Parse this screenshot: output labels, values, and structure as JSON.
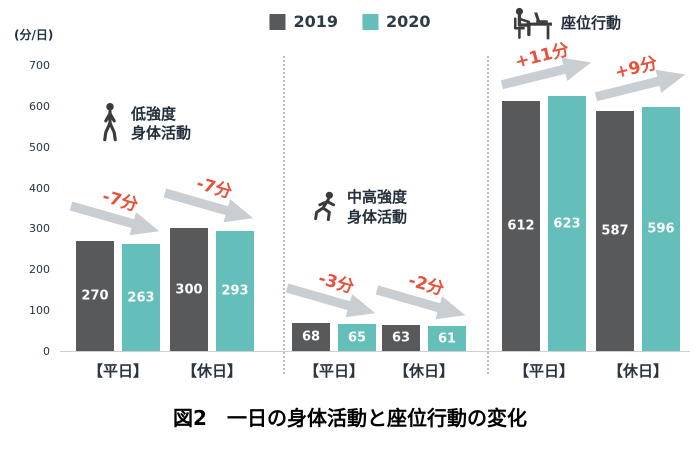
{
  "chart_data": {
    "type": "bar",
    "title": "図2　一日の身体活動と座位行動の変化",
    "ylabel": "(分/日)",
    "ylim": [
      0,
      700
    ],
    "y_ticks": [
      700,
      600,
      500,
      400,
      300,
      200,
      100,
      0
    ],
    "legend_position": "top-center",
    "grid": false,
    "series": [
      {
        "name": "2019",
        "color": "#58595b"
      },
      {
        "name": "2020",
        "color": "#64bfba"
      }
    ],
    "groups": [
      {
        "label_lines": [
          "低強度",
          "身体活動"
        ],
        "icon": "walking-person-icon",
        "pairs": [
          {
            "category": "【平日】",
            "values": [
              270,
              263
            ],
            "change_label": "-7分",
            "direction": "down"
          },
          {
            "category": "【休日】",
            "values": [
              300,
              293
            ],
            "change_label": "-7分",
            "direction": "down"
          }
        ]
      },
      {
        "label_lines": [
          "中高強度",
          "身体活動"
        ],
        "icon": "running-person-icon",
        "pairs": [
          {
            "category": "【平日】",
            "values": [
              68,
              65
            ],
            "change_label": "-3分",
            "direction": "down"
          },
          {
            "category": "【休日】",
            "values": [
              63,
              61
            ],
            "change_label": "-2分",
            "direction": "down"
          }
        ]
      },
      {
        "label_lines": [
          "座位行動"
        ],
        "icon": "sitting-person-icon",
        "pairs": [
          {
            "category": "【平日】",
            "values": [
              612,
              623
            ],
            "change_label": "+11分",
            "direction": "up"
          },
          {
            "category": "【休日】",
            "values": [
              587,
              596
            ],
            "change_label": "+9分",
            "direction": "up"
          }
        ]
      }
    ]
  },
  "colors": {
    "bar_2019": "#58595b",
    "bar_2020": "#64bfba",
    "change_text": "#e8503a",
    "arrow": "#c9ced2",
    "axis_text": "#1f3347"
  }
}
